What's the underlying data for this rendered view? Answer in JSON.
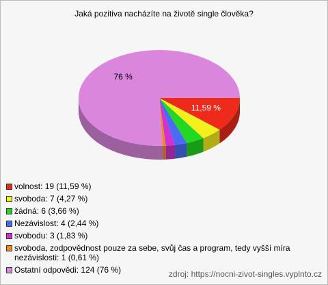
{
  "chart_data": {
    "type": "pie",
    "title": "Jaká pozitiva nacházíte na životě single člověka?",
    "categories": [
      "volnost",
      "svoboda",
      "žádná",
      "Nezávislost",
      "svobodu",
      "svoboda, zodpovědnost pouze za sebe, svůj čas a program, tedy vyšší míra nezávislosti",
      "Ostatní odpovědi"
    ],
    "values": [
      11.59,
      4.27,
      3.66,
      2.44,
      1.83,
      0.61,
      76
    ],
    "value_labels": [
      "11,59 %",
      null,
      null,
      null,
      null,
      null,
      "76 %"
    ],
    "colors": [
      "#ee2a1a",
      "#f4f01e",
      "#22d822",
      "#4a6cf4",
      "#cc33d0",
      "#f08a1a",
      "#da86dc"
    ],
    "legend": [
      "volnost: 19 (11,59 %)",
      "svoboda: 7 (4,27 %)",
      "žádná: 6 (3,66 %)",
      "Nezávislost: 4 (2,44 %)",
      "svobodu: 3 (1,83 %)",
      "svoboda, zodpovědnost pouze za sebe, svůj čas a program, tedy vyšší míra nezávislosti: 1 (0,61 %)",
      "Ostatní odpovědi: 124 (76 %)"
    ],
    "source": "zdroj: https://nocni-zivot-singles.vyplnto.cz"
  }
}
